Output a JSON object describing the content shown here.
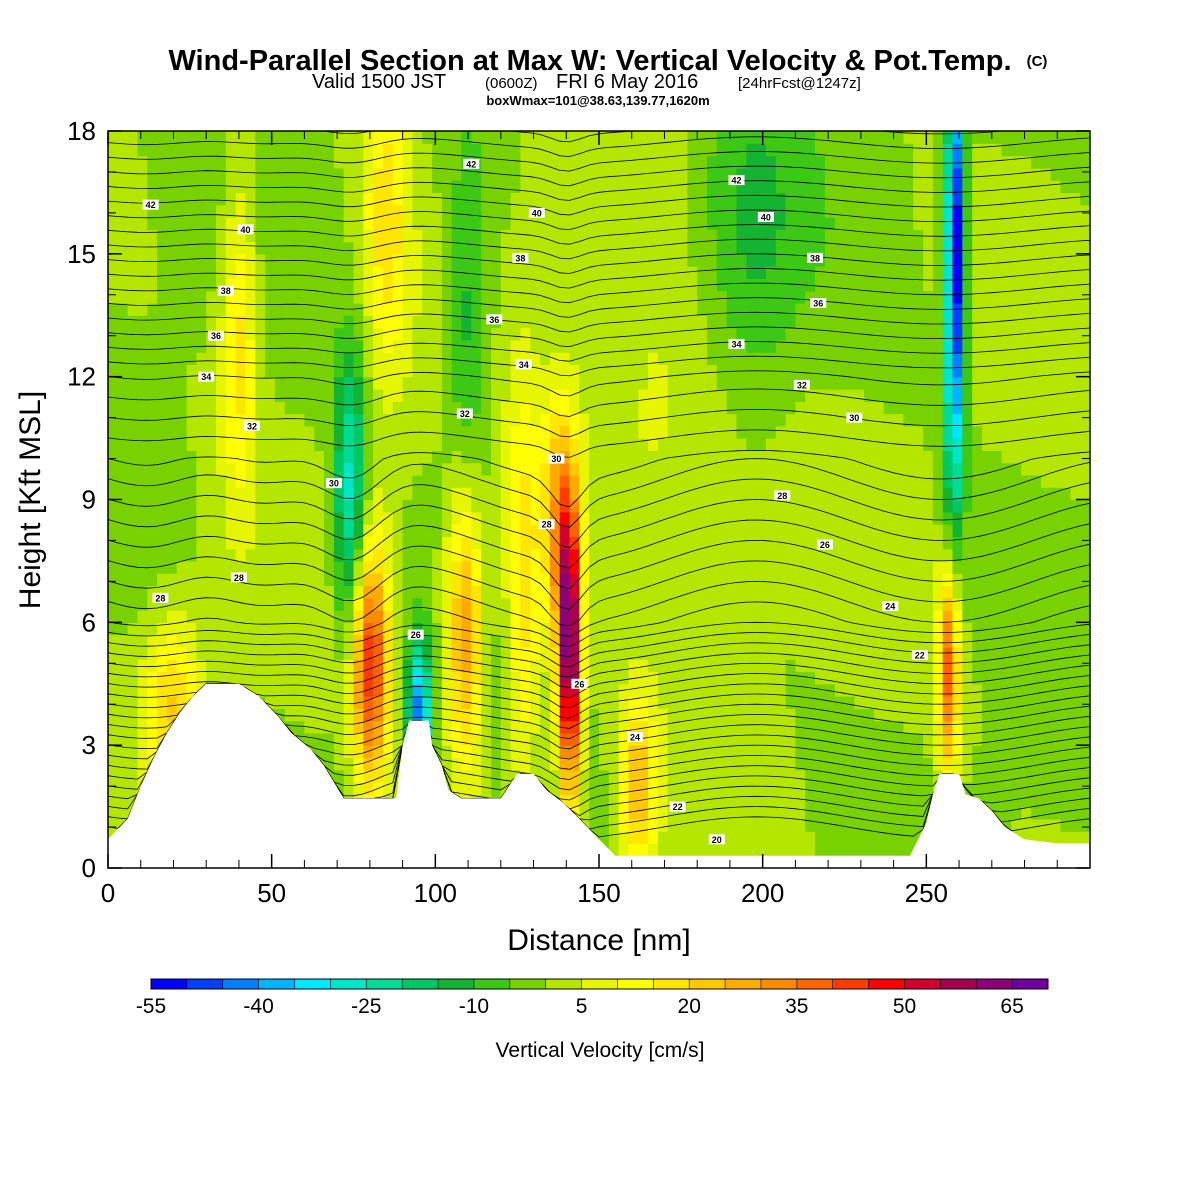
{
  "header": {
    "title": "Wind-Parallel Section at Max W: Vertical Velocity & Pot.Temp.",
    "copyright": "(C)",
    "valid_prefix": "Valid 1500 JST",
    "valid_utc": "(0600Z)",
    "valid_date": "FRI 6 May 2016",
    "forecast_info": "[24hrFcst@1247z]",
    "box_info": "boxWmax=101@38.63,139.77,1620m"
  },
  "colorbar": {
    "title": "Vertical Velocity [cm/s]",
    "labels": [
      "-55",
      "-40",
      "-25",
      "-10",
      "5",
      "20",
      "35",
      "50",
      "65"
    ],
    "colors": [
      "#0000ff",
      "#0040ff",
      "#0080ff",
      "#00b4ff",
      "#00e6ff",
      "#00e6c8",
      "#00dc96",
      "#00c864",
      "#14b432",
      "#3cc814",
      "#78d200",
      "#b4e600",
      "#e6f500",
      "#ffff00",
      "#ffe600",
      "#ffc800",
      "#ffaa00",
      "#ff8c00",
      "#ff6400",
      "#ff3c00",
      "#ff0000",
      "#d2002d",
      "#aa0050",
      "#8c0078",
      "#6e00a0"
    ]
  },
  "chart_data": {
    "type": "heatmap",
    "title": "Wind-Parallel Section at Max W: Vertical Velocity & Pot.Temp.",
    "xlabel": "Distance [nm]",
    "ylabel": "Height [Kft MSL]",
    "xlim": [
      0,
      300
    ],
    "ylim": [
      0,
      18
    ],
    "x_ticks": [
      "0",
      "50",
      "100",
      "150",
      "200",
      "250"
    ],
    "y_ticks": [
      "0",
      "3",
      "6",
      "9",
      "12",
      "15",
      "18"
    ],
    "colorbar_range": [
      -55,
      75
    ],
    "w_features": [
      {
        "x": 80,
        "z": 5.0,
        "w": 45,
        "sx": 4,
        "sz": 2.2
      },
      {
        "x": 95,
        "z": 3.8,
        "w": -45,
        "sx": 2.5,
        "sz": 1.3
      },
      {
        "x": 74,
        "z": 9.0,
        "w": -30,
        "sx": 3.5,
        "sz": 2.5
      },
      {
        "x": 109,
        "z": 5.8,
        "w": 32,
        "sx": 4,
        "sz": 2.5
      },
      {
        "x": 127,
        "z": 6.5,
        "w": 20,
        "sx": 4,
        "sz": 3.5
      },
      {
        "x": 141,
        "z": 5.2,
        "w": 70,
        "sx": 2.5,
        "sz": 2.4
      },
      {
        "x": 138,
        "z": 8.5,
        "w": 28,
        "sx": 3.5,
        "sz": 2.0
      },
      {
        "x": 162,
        "z": 2.0,
        "w": 25,
        "sx": 4,
        "sz": 1.5
      },
      {
        "x": 257,
        "z": 5.0,
        "w": 45,
        "sx": 2.3,
        "sz": 2.0
      },
      {
        "x": 259,
        "z": 15.5,
        "w": -52,
        "sx": 2.0,
        "sz": 3.2
      },
      {
        "x": 258,
        "z": 10.0,
        "w": -20,
        "sx": 2.5,
        "sz": 4.0
      },
      {
        "x": 110,
        "z": 13.0,
        "w": -15,
        "sx": 5,
        "sz": 3
      },
      {
        "x": 85,
        "z": 16,
        "w": 18,
        "sx": 5,
        "sz": 3
      },
      {
        "x": 195,
        "z": 15,
        "w": -12,
        "sx": 12,
        "sz": 3
      },
      {
        "x": 20,
        "z": 4,
        "w": 20,
        "sx": 6,
        "sz": 1.5
      },
      {
        "x": 170,
        "z": 11,
        "w": 10,
        "sx": 20,
        "sz": 3
      },
      {
        "x": 40,
        "z": 13,
        "w": 18,
        "sx": 4,
        "sz": 3
      }
    ],
    "terrain": [
      [
        0,
        0.7
      ],
      [
        6,
        1.2
      ],
      [
        10,
        2.0
      ],
      [
        14,
        2.7
      ],
      [
        18,
        3.3
      ],
      [
        22,
        3.8
      ],
      [
        26,
        4.2
      ],
      [
        30,
        4.5
      ],
      [
        40,
        4.5
      ],
      [
        46,
        4.2
      ],
      [
        52,
        3.7
      ],
      [
        56,
        3.3
      ],
      [
        62,
        2.9
      ],
      [
        66,
        2.5
      ],
      [
        72,
        1.7
      ],
      [
        78,
        1.7
      ],
      [
        82,
        1.7
      ],
      [
        88,
        1.7
      ],
      [
        90,
        3.0
      ],
      [
        92,
        3.6
      ],
      [
        98,
        3.6
      ],
      [
        99,
        3.0
      ],
      [
        102,
        2.5
      ],
      [
        104,
        1.9
      ],
      [
        108,
        1.7
      ],
      [
        120,
        1.7
      ],
      [
        125,
        2.3
      ],
      [
        130,
        2.3
      ],
      [
        134,
        1.9
      ],
      [
        139,
        1.6
      ],
      [
        144,
        1.2
      ],
      [
        150,
        0.7
      ],
      [
        155,
        0.3
      ],
      [
        245,
        0.3
      ],
      [
        250,
        1.1
      ],
      [
        252,
        1.8
      ],
      [
        254,
        2.3
      ],
      [
        260,
        2.3
      ],
      [
        262,
        1.8
      ],
      [
        266,
        1.7
      ],
      [
        270,
        1.4
      ],
      [
        274,
        1.0
      ],
      [
        280,
        0.7
      ],
      [
        290,
        0.6
      ],
      [
        300,
        0.6
      ]
    ],
    "theta_levels": [
      20,
      22,
      24,
      26,
      28,
      30,
      32,
      34,
      36,
      38,
      40,
      42
    ],
    "theta_labels": [
      {
        "x": 16,
        "z": 6.6,
        "t": "28"
      },
      {
        "x": 40,
        "z": 7.1,
        "t": "28"
      },
      {
        "x": 69,
        "z": 9.4,
        "t": "30"
      },
      {
        "x": 44,
        "z": 10.8,
        "t": "32"
      },
      {
        "x": 30,
        "z": 12.0,
        "t": "34"
      },
      {
        "x": 33,
        "z": 13.0,
        "t": "36"
      },
      {
        "x": 36,
        "z": 14.1,
        "t": "38"
      },
      {
        "x": 42,
        "z": 15.6,
        "t": "40"
      },
      {
        "x": 13,
        "z": 16.2,
        "t": "42"
      },
      {
        "x": 109,
        "z": 11.1,
        "t": "32"
      },
      {
        "x": 127,
        "z": 12.3,
        "t": "34"
      },
      {
        "x": 118,
        "z": 13.4,
        "t": "36"
      },
      {
        "x": 126,
        "z": 14.9,
        "t": "38"
      },
      {
        "x": 131,
        "z": 16.0,
        "t": "40"
      },
      {
        "x": 111,
        "z": 17.2,
        "t": "42"
      },
      {
        "x": 137,
        "z": 10.0,
        "t": "30"
      },
      {
        "x": 134,
        "z": 8.4,
        "t": "28"
      },
      {
        "x": 94,
        "z": 5.7,
        "t": "26"
      },
      {
        "x": 144,
        "z": 4.5,
        "t": "26"
      },
      {
        "x": 161,
        "z": 3.2,
        "t": "24"
      },
      {
        "x": 174,
        "z": 1.5,
        "t": "22"
      },
      {
        "x": 186,
        "z": 0.7,
        "t": "20"
      },
      {
        "x": 192,
        "z": 16.8,
        "t": "42"
      },
      {
        "x": 201,
        "z": 15.9,
        "t": "40"
      },
      {
        "x": 216,
        "z": 14.9,
        "t": "38"
      },
      {
        "x": 217,
        "z": 13.8,
        "t": "36"
      },
      {
        "x": 192,
        "z": 12.8,
        "t": "34"
      },
      {
        "x": 212,
        "z": 11.8,
        "t": "32"
      },
      {
        "x": 228,
        "z": 11.0,
        "t": "30"
      },
      {
        "x": 206,
        "z": 9.1,
        "t": "28"
      },
      {
        "x": 219,
        "z": 7.9,
        "t": "26"
      },
      {
        "x": 239,
        "z": 6.4,
        "t": "24"
      },
      {
        "x": 248,
        "z": 5.2,
        "t": "22"
      }
    ]
  }
}
